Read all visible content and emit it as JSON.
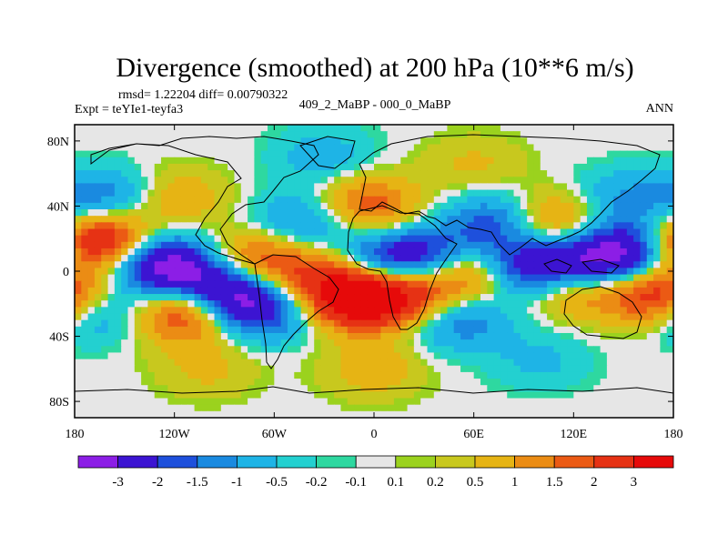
{
  "chart_data": {
    "type": "heatmap",
    "title": "Divergence (smoothed) at 200 hPa (10**6 m/s)",
    "stats": "rmsd= 1.22204 diff= 0.00790322",
    "experiment": "Expt = teYIe1-teyfa3",
    "comparison": "409_2_MaBP - 000_0_MaBP",
    "period": "ANN",
    "x_ticks": [
      "180",
      "120W",
      "60W",
      "0",
      "60E",
      "120E",
      "180"
    ],
    "x_values": [
      -180,
      -120,
      -60,
      0,
      60,
      120,
      180
    ],
    "y_ticks": [
      "80N",
      "40N",
      "0",
      "40S",
      "80S"
    ],
    "y_values": [
      80,
      40,
      0,
      -40,
      -80
    ],
    "xlim": [
      -180,
      180
    ],
    "ylim": [
      -90,
      90
    ],
    "colorbar": {
      "labels": [
        "-3",
        "-2",
        "-1.5",
        "-1",
        "-0.5",
        "-0.2",
        "-0.1",
        "0.1",
        "0.2",
        "0.5",
        "1",
        "1.5",
        "2",
        "3"
      ],
      "levels": [
        -3,
        -2,
        -1.5,
        -1,
        -0.5,
        -0.2,
        -0.1,
        0.1,
        0.2,
        0.5,
        1,
        1.5,
        2,
        3
      ],
      "colors": [
        "#8c1ee6",
        "#3c14d2",
        "#1e50dc",
        "#1a8ae0",
        "#1eb4e6",
        "#23d0d0",
        "#2ed8a0",
        "#e6e6e6",
        "#9bd21e",
        "#c8c81e",
        "#e6b414",
        "#eb8c14",
        "#eb5a14",
        "#e63214",
        "#e60a0a"
      ]
    },
    "field_centers": [
      {
        "lon": -165,
        "lat": 18,
        "value": 3.5
      },
      {
        "lon": -128,
        "lat": 4,
        "value": -3.5
      },
      {
        "lon": -110,
        "lat": -25,
        "value": 3.0
      },
      {
        "lon": -92,
        "lat": -8,
        "value": -2.5
      },
      {
        "lon": -85,
        "lat": -20,
        "value": -2.0
      },
      {
        "lon": -70,
        "lat": 5,
        "value": 2.5
      },
      {
        "lon": -65,
        "lat": -25,
        "value": -1.5
      },
      {
        "lon": -40,
        "lat": 30,
        "value": -1.5
      },
      {
        "lon": -25,
        "lat": -5,
        "value": 2.0
      },
      {
        "lon": -8,
        "lat": -18,
        "value": 3.5
      },
      {
        "lon": -5,
        "lat": 40,
        "value": 2.0
      },
      {
        "lon": 10,
        "lat": 5,
        "value": -3.0
      },
      {
        "lon": 20,
        "lat": -12,
        "value": 2.5
      },
      {
        "lon": 40,
        "lat": 10,
        "value": -1.5
      },
      {
        "lon": 62,
        "lat": 0,
        "value": 2.5
      },
      {
        "lon": 75,
        "lat": 30,
        "value": -2.0
      },
      {
        "lon": 92,
        "lat": 2,
        "value": -3.5
      },
      {
        "lon": 105,
        "lat": 30,
        "value": 2.0
      },
      {
        "lon": 120,
        "lat": -8,
        "value": 2.0
      },
      {
        "lon": 135,
        "lat": 5,
        "value": -3.0
      },
      {
        "lon": 155,
        "lat": 15,
        "value": -2.0
      },
      {
        "lon": 170,
        "lat": -15,
        "value": 3.0
      },
      {
        "lon": -160,
        "lat": 45,
        "value": -1.5
      },
      {
        "lon": -170,
        "lat": -25,
        "value": -1.5
      },
      {
        "lon": 50,
        "lat": -30,
        "value": -1.5
      },
      {
        "lon": 150,
        "lat": 45,
        "value": -1.0
      },
      {
        "lon": -120,
        "lat": 45,
        "value": 1.0
      },
      {
        "lon": 0,
        "lat": -60,
        "value": 0.8
      },
      {
        "lon": -100,
        "lat": -60,
        "value": 0.6
      },
      {
        "lon": 100,
        "lat": -55,
        "value": -0.6
      },
      {
        "lon": -30,
        "lat": 70,
        "value": -0.8
      },
      {
        "lon": 60,
        "lat": 65,
        "value": 0.6
      }
    ]
  }
}
